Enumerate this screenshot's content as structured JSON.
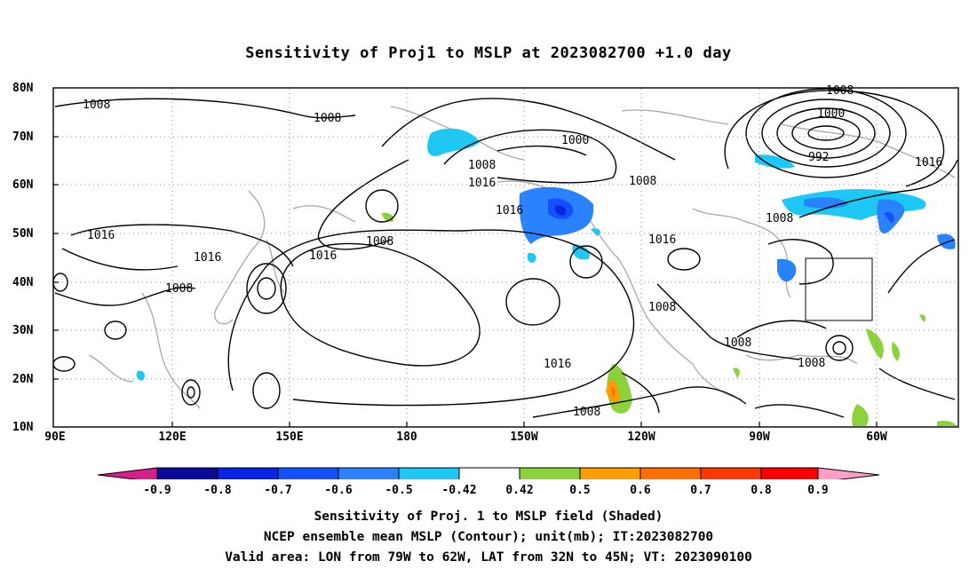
{
  "title": "Sensitivity of Proj1 to MSLP at 2023082700 +1.0 day",
  "lat_labels": [
    "80N",
    "70N",
    "60N",
    "50N",
    "40N",
    "30N",
    "20N",
    "10N"
  ],
  "lon_labels": [
    "90E",
    "120E",
    "150E",
    "180",
    "150W",
    "120W",
    "90W",
    "60W"
  ],
  "contour_labels": [
    "1008",
    "1008",
    "1008",
    "1000",
    "992",
    "1016",
    "1016",
    "1016",
    "1016",
    "1016",
    "1016",
    "1016",
    "1008",
    "1008",
    "1008",
    "1008",
    "1008",
    "1008",
    "1008",
    "1016",
    "1008",
    "1000",
    "1008"
  ],
  "colorbar": {
    "ticks": [
      "-0.9",
      "-0.8",
      "-0.7",
      "-0.6",
      "-0.5",
      "-0.42",
      "0.42",
      "0.5",
      "0.6",
      "0.7",
      "0.8",
      "0.9"
    ],
    "colors": [
      "#d61f8b",
      "#0a0a9a",
      "#0a24e6",
      "#1450ff",
      "#2b82ff",
      "#1ec8f5",
      "#ffffff",
      "#8cd23c",
      "#ff9d00",
      "#ff6e00",
      "#ff3700",
      "#ff0000",
      "#ff9fc8"
    ]
  },
  "caption": {
    "line1": "Sensitivity of Proj. 1 to MSLP field (Shaded)",
    "line2": "NCEP ensemble mean MSLP (Contour); unit(mb); IT:2023082700",
    "line3": "Valid area: LON from 79W to 62W, LAT from 32N to 45N; VT: 2023090100"
  }
}
